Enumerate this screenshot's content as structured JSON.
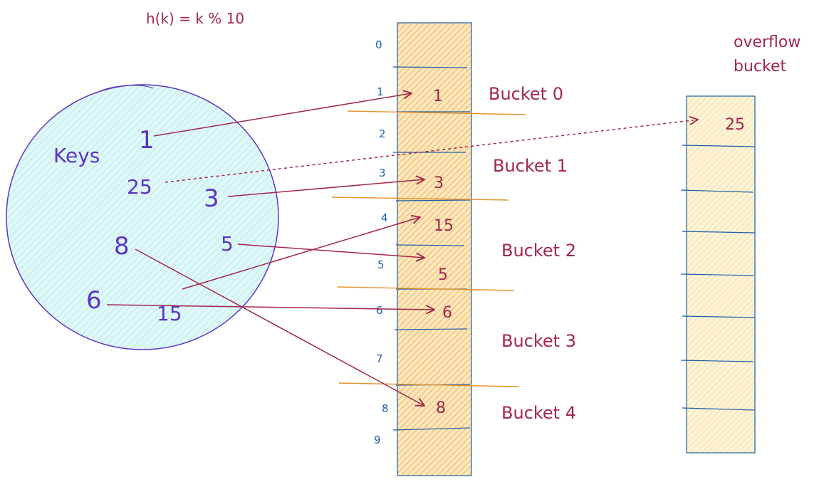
{
  "formula": "h(k) = k % 10",
  "keys_label": "Keys",
  "keys": [
    "1",
    "25",
    "3",
    "8",
    "5",
    "6",
    "15"
  ],
  "slot_indices": [
    "0",
    "1",
    "2",
    "3",
    "4",
    "5",
    "6",
    "7",
    "8",
    "9"
  ],
  "slot_values": [
    "1",
    "3",
    "15",
    "5",
    "6",
    "8"
  ],
  "bucket_labels": [
    "Bucket 0",
    "Bucket 1",
    "Bucket 2",
    "Bucket 3",
    "Bucket 4"
  ],
  "overflow": {
    "title_line1": "overflow",
    "title_line2": "bucket",
    "value": "25"
  },
  "colors": {
    "ink_purple": "#5b35c6",
    "ink_crimson": "#a3264e",
    "ink_blue": "#1c5fa8",
    "bucket_divider": "#e8932a",
    "circle_fill": "#c9f0f0",
    "table_fill": "#f6cf86",
    "overflow_fill": "#f7e2a6"
  }
}
